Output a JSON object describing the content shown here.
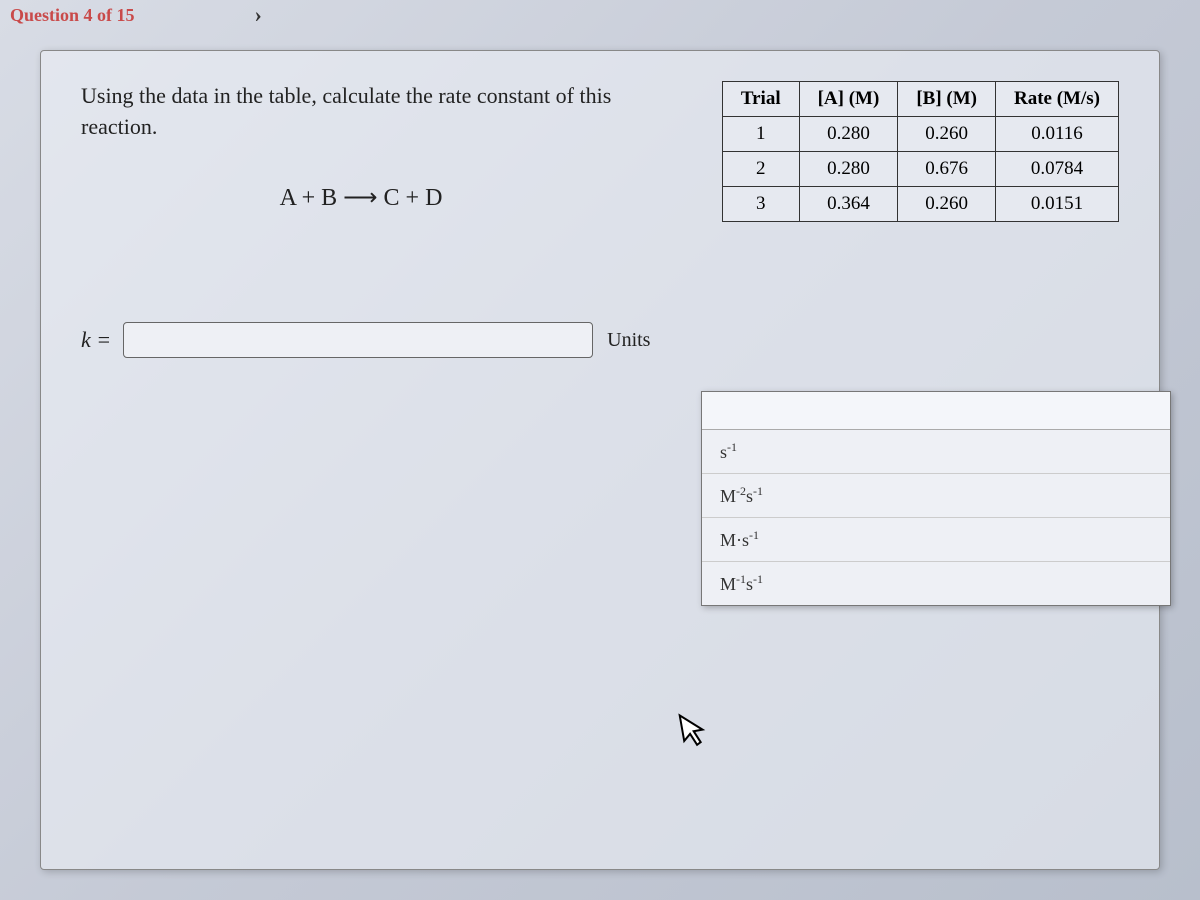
{
  "nav": {
    "progress_text": "Question 4 of 15",
    "arrow": "›"
  },
  "prompt": {
    "text": "Using the data in the table, calculate the rate constant of this reaction.",
    "equation": "A + B ⟶ C + D"
  },
  "table": {
    "headers": [
      "Trial",
      "[A] (M)",
      "[B] (M)",
      "Rate (M/s)"
    ],
    "rows": [
      [
        "1",
        "0.280",
        "0.260",
        "0.0116"
      ],
      [
        "2",
        "0.280",
        "0.676",
        "0.0784"
      ],
      [
        "3",
        "0.364",
        "0.260",
        "0.0151"
      ]
    ],
    "border_color": "#333",
    "header_bg": "#e6e9f0",
    "cell_bg": "#e6e9f0"
  },
  "answer": {
    "k_label": "k =",
    "k_value": "",
    "units_label": "Units",
    "units_selected": "",
    "units_options_html": [
      "s<sup>-1</sup>",
      "M<sup>-2</sup>s<sup>-1</sup>",
      "M·s<sup>-1</sup>",
      "M<sup>-1</sup>s<sup>-1</sup>"
    ]
  },
  "colors": {
    "background_gradient_from": "#d8dce5",
    "background_gradient_to": "#b8bfcc",
    "card_bg": "rgba(235,238,245,0.6)",
    "text": "#222",
    "nav_text": "#c94a4a"
  }
}
